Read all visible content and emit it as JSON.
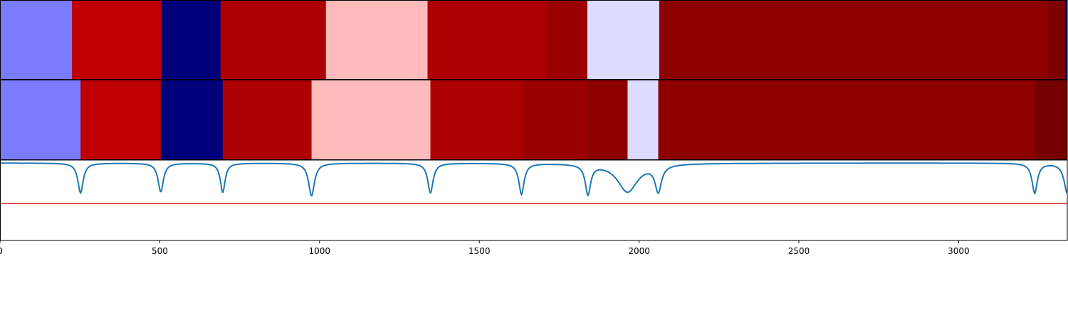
{
  "chart_data": {
    "type": "heatmap",
    "x_range": [
      0,
      3340
    ],
    "x_ticks": [
      0,
      500,
      1000,
      1500,
      2000,
      2500,
      3000
    ],
    "x_tick_labels": [
      "0",
      "500",
      "1000",
      "1500",
      "2000",
      "2500",
      "3000"
    ],
    "segment_rows": [
      {
        "segments": [
          {
            "start": 0,
            "end": 225,
            "color": "#7b7bff"
          },
          {
            "start": 225,
            "end": 505,
            "color": "#c00000"
          },
          {
            "start": 505,
            "end": 690,
            "color": "#00007b"
          },
          {
            "start": 690,
            "end": 1020,
            "color": "#ad0000"
          },
          {
            "start": 1020,
            "end": 1338,
            "color": "#ffbbbb"
          },
          {
            "start": 1338,
            "end": 1708,
            "color": "#ad0000"
          },
          {
            "start": 1708,
            "end": 1838,
            "color": "#9b0000"
          },
          {
            "start": 1838,
            "end": 2063,
            "color": "#dcdcff"
          },
          {
            "start": 2063,
            "end": 3280,
            "color": "#8c0000"
          },
          {
            "start": 3280,
            "end": 3333,
            "color": "#7b0000"
          },
          {
            "start": 3333,
            "end": 3340,
            "color": "#00007b"
          }
        ]
      },
      {
        "segments": [
          {
            "start": 0,
            "end": 252,
            "color": "#7b7bff"
          },
          {
            "start": 252,
            "end": 503,
            "color": "#c00000"
          },
          {
            "start": 503,
            "end": 697,
            "color": "#00007b"
          },
          {
            "start": 697,
            "end": 975,
            "color": "#ad0000"
          },
          {
            "start": 975,
            "end": 1347,
            "color": "#ffbbbb"
          },
          {
            "start": 1347,
            "end": 1632,
            "color": "#ad0000"
          },
          {
            "start": 1632,
            "end": 1840,
            "color": "#9b0000"
          },
          {
            "start": 1840,
            "end": 1964,
            "color": "#8c0000"
          },
          {
            "start": 1964,
            "end": 2060,
            "color": "#dcdcff"
          },
          {
            "start": 2060,
            "end": 3238,
            "color": "#8c0000"
          },
          {
            "start": 3238,
            "end": 3340,
            "color": "#740000"
          }
        ]
      }
    ],
    "line": {
      "color": "#1f77b4",
      "y_range": [
        -1.3,
        0.05
      ],
      "baseline": 0,
      "dips": [
        {
          "center": 252,
          "depth": 0.5,
          "width": 10
        },
        {
          "center": 503,
          "depth": 0.48,
          "width": 10
        },
        {
          "center": 697,
          "depth": 0.49,
          "width": 9
        },
        {
          "center": 975,
          "depth": 0.55,
          "width": 11
        },
        {
          "center": 1347,
          "depth": 0.5,
          "width": 10
        },
        {
          "center": 1632,
          "depth": 0.52,
          "width": 10
        },
        {
          "center": 1840,
          "depth": 0.5,
          "width": 10
        },
        {
          "center": 1964,
          "depth": 0.48,
          "width": 38
        },
        {
          "center": 2060,
          "depth": 0.44,
          "width": 12
        },
        {
          "center": 3238,
          "depth": 0.5,
          "width": 10
        },
        {
          "center": 3340,
          "depth": 0.5,
          "width": 12
        }
      ]
    },
    "threshold": {
      "value": -0.68,
      "color": "#e31a1c"
    },
    "grid": false,
    "legend": "none"
  }
}
